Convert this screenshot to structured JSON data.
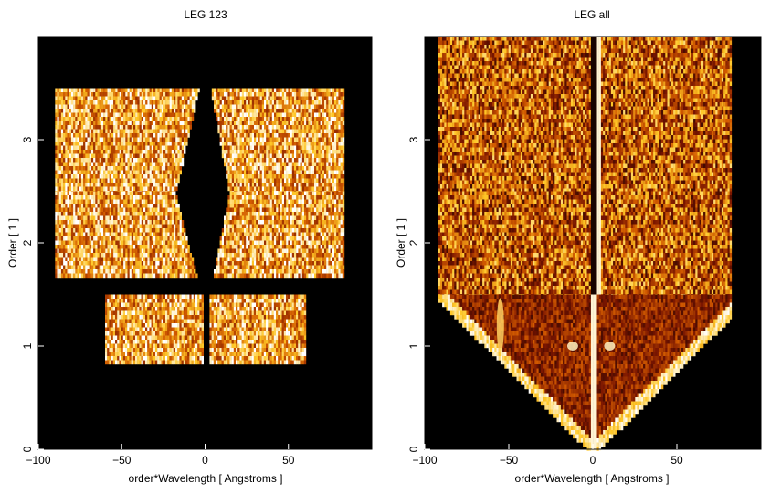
{
  "chart_data": [
    {
      "type": "heatmap",
      "title": "LEG 123",
      "xlabel": "order*Wavelength [ Angstroms ]",
      "ylabel": "Order [ 1 ]",
      "xlim": [
        -100,
        100
      ],
      "ylim": [
        0,
        4
      ],
      "x_ticks": [
        -100,
        -50,
        0,
        50
      ],
      "x_tick_labels": [
        "−100",
        "−50",
        "0",
        "50"
      ],
      "y_ticks": [
        0,
        1,
        2,
        3
      ],
      "y_tick_labels": [
        "0",
        "1",
        "2",
        "3"
      ],
      "colormap": "black-red-orange-yellow-white",
      "regions": [
        {
          "order": 3,
          "x": [
            -90,
            83
          ],
          "y": [
            2.5,
            3.5
          ],
          "gap_top": [
            -4,
            3
          ],
          "gap_bottom": [
            -18,
            14
          ]
        },
        {
          "order": 2,
          "x": [
            -90,
            83
          ],
          "y": [
            1.67,
            2.5
          ],
          "gap_top": [
            -18,
            14
          ],
          "gap_bottom": [
            -5,
            4
          ]
        },
        {
          "order": 1,
          "x": [
            -60,
            60
          ],
          "y": [
            0.83,
            1.5
          ],
          "gap_top": [
            -2,
            2
          ],
          "gap_bottom": [
            -2,
            2
          ]
        }
      ]
    },
    {
      "type": "heatmap",
      "title": "LEG all",
      "xlabel": "order*Wavelength [ Angstroms ]",
      "ylabel": "Order [ 1 ]",
      "xlim": [
        -100,
        100
      ],
      "ylim": [
        0,
        4
      ],
      "x_ticks": [
        -100,
        -50,
        0,
        50
      ],
      "x_tick_labels": [
        "−100",
        "−50",
        "0",
        "50"
      ],
      "y_ticks": [
        0,
        1,
        2,
        3
      ],
      "y_tick_labels": [
        "0",
        "1",
        "2",
        "3"
      ],
      "colormap": "black-red-orange-yellow-white",
      "regions": [
        {
          "order": 3,
          "x": [
            -92,
            82
          ],
          "y": [
            2.5,
            4.0
          ]
        },
        {
          "order": 2,
          "x": [
            -92,
            82
          ],
          "y": [
            1.5,
            2.5
          ]
        },
        {
          "order": 1,
          "x": [
            -92,
            82
          ],
          "y": [
            0,
            1.5
          ],
          "wedge": true
        }
      ],
      "features": [
        {
          "kind": "bright-arc",
          "x": -55,
          "y": 1.2
        },
        {
          "kind": "bright-blob",
          "x": -12,
          "y": 1.0
        },
        {
          "kind": "bright-blob",
          "x": 10,
          "y": 1.0
        }
      ]
    }
  ]
}
